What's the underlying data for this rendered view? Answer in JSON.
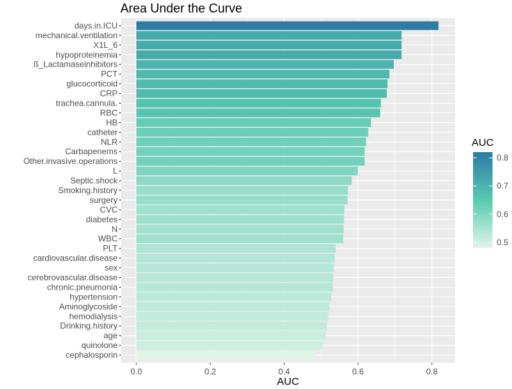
{
  "chart_data": {
    "type": "bar",
    "orientation": "horizontal",
    "title": "Area Under the Curve",
    "xlabel": "AUC",
    "ylabel": "",
    "xlim": [
      0,
      0.86
    ],
    "x_ticks": [
      0.0,
      0.2,
      0.4,
      0.6,
      0.8
    ],
    "x_tick_labels": [
      "0.0",
      "0.2",
      "0.4",
      "0.6",
      "0.8"
    ],
    "grid": true,
    "categories": [
      "days.in.ICU",
      "mechanical.ventilation",
      "X1L_6",
      "hypoproteinemia",
      "ß_Lactamaseinhibitors",
      "PCT",
      "glucocorticoid",
      "CRP",
      "trachea.cannula.",
      "RBC",
      "HB",
      "catheter",
      "NLR",
      "Carbapenems",
      "Other.invasive.operations",
      "L",
      "Septic.shock",
      "Smoking.history",
      "surgery",
      "CVC",
      "diabetes",
      "N",
      "WBC",
      "PLT",
      "cardiovascular.disease",
      "sex",
      "cerebrovascular.disease",
      "chronic.pneumonia",
      "hypertension",
      "Aminoglycoside",
      "hemodialysis",
      "Drinking.history",
      "age",
      "quinolone",
      "cephalosporin"
    ],
    "values": [
      0.818,
      0.718,
      0.718,
      0.718,
      0.697,
      0.685,
      0.68,
      0.678,
      0.662,
      0.66,
      0.635,
      0.628,
      0.622,
      0.618,
      0.618,
      0.6,
      0.583,
      0.573,
      0.572,
      0.563,
      0.562,
      0.561,
      0.56,
      0.54,
      0.537,
      0.535,
      0.533,
      0.532,
      0.528,
      0.523,
      0.519,
      0.516,
      0.512,
      0.505,
      0.48
    ],
    "legend": {
      "title": "AUC",
      "position": "right",
      "range": [
        0.48,
        0.82
      ],
      "ticks": [
        0.5,
        0.6,
        0.7,
        0.8
      ],
      "tick_labels": [
        "0.5",
        "0.6",
        "0.7",
        "0.8"
      ],
      "color_low": "#e0f5e9",
      "color_mid": "#58c9b0",
      "color_high": "#2e7ba6"
    },
    "colors": {
      "panel_bg": "#ebebeb",
      "grid_major": "#ffffff",
      "text": "#4d4d4d"
    }
  }
}
